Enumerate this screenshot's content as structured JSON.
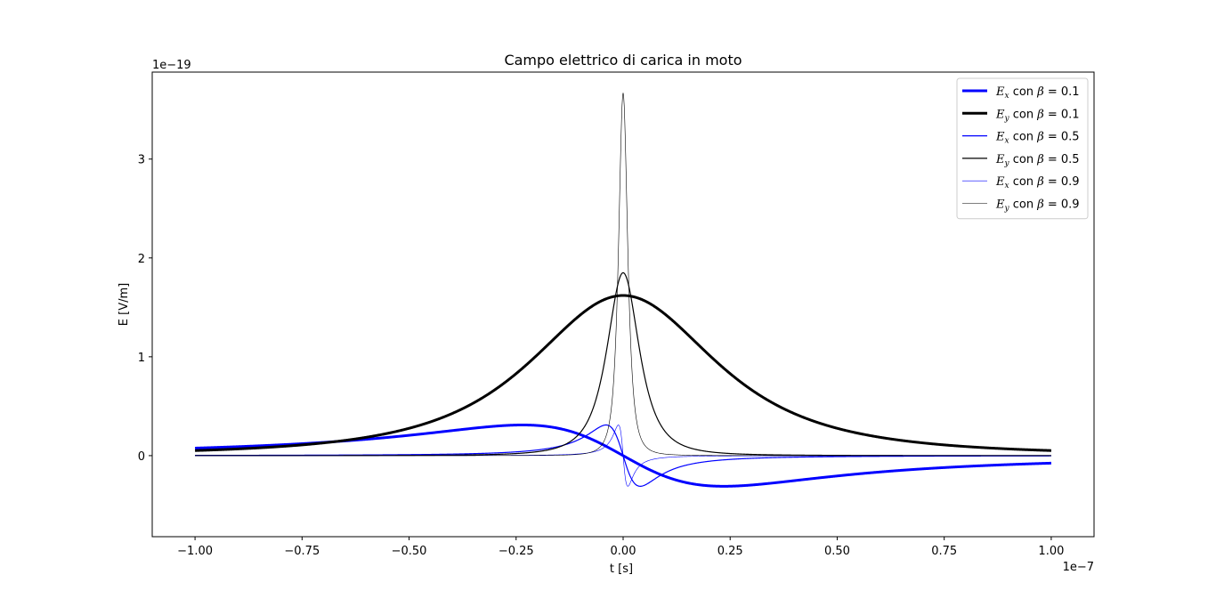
{
  "chart_data": {
    "type": "line",
    "title": "Campo elettrico di carica in moto",
    "xlabel": "t [s]",
    "ylabel": "E [V/m]",
    "x_offset_label": "1e−7",
    "y_offset_label": "1e−19",
    "xlim": [
      -1.1,
      1.1
    ],
    "ylim": [
      -0.82,
      3.88
    ],
    "x_ticks": [
      -1.0,
      -0.75,
      -0.5,
      -0.25,
      0.0,
      0.25,
      0.5,
      0.75,
      1.0
    ],
    "x_tick_labels": [
      "−1.00",
      "−0.75",
      "−0.50",
      "−0.25",
      "0.00",
      "0.25",
      "0.50",
      "0.75",
      "1.00"
    ],
    "y_ticks": [
      0,
      1,
      2,
      3
    ],
    "y_tick_labels": [
      "0",
      "1",
      "2",
      "3"
    ],
    "grid": false,
    "legend_position": "top-right",
    "x_range": [
      -1.0,
      1.0
    ],
    "series": [
      {
        "name": "E_x con β = 0.1",
        "component": "x",
        "beta": 0.1,
        "color": "#0000ff",
        "line_weight": "thick",
        "peak": 0.62,
        "peak_t": 0.235
      },
      {
        "name": "E_y con β = 0.1",
        "component": "y",
        "beta": 0.1,
        "color": "#000000",
        "line_weight": "thick",
        "peak": 1.62,
        "peak_t": 0.0
      },
      {
        "name": "E_x con β = 0.5",
        "component": "x",
        "beta": 0.5,
        "color": "#0000ff",
        "line_weight": "medium",
        "peak": 0.62,
        "peak_t": 0.04
      },
      {
        "name": "E_y con β = 0.5",
        "component": "y",
        "beta": 0.5,
        "color": "#000000",
        "line_weight": "medium",
        "peak": 1.85,
        "peak_t": 0.0
      },
      {
        "name": "E_x con β = 0.9",
        "component": "x",
        "beta": 0.9,
        "color": "#0000ff",
        "line_weight": "thin",
        "peak": 0.62,
        "peak_t": 0.011
      },
      {
        "name": "E_y con β = 0.9",
        "component": "y",
        "beta": 0.9,
        "color": "#000000",
        "line_weight": "thin",
        "peak": 3.67,
        "peak_t": 0.0
      }
    ],
    "legend": [
      {
        "sym": "E",
        "sub": "x",
        "mid": " con ",
        "greek": "β",
        "val": " = 0.1"
      },
      {
        "sym": "E",
        "sub": "y",
        "mid": " con ",
        "greek": "β",
        "val": " = 0.1"
      },
      {
        "sym": "E",
        "sub": "x",
        "mid": " con ",
        "greek": "β",
        "val": " = 0.5"
      },
      {
        "sym": "E",
        "sub": "y",
        "mid": " con ",
        "greek": "β",
        "val": " = 0.5"
      },
      {
        "sym": "E",
        "sub": "x",
        "mid": " con ",
        "greek": "β",
        "val": " = 0.9"
      },
      {
        "sym": "E",
        "sub": "y",
        "mid": " con ",
        "greek": "β",
        "val": " = 0.9"
      }
    ]
  }
}
